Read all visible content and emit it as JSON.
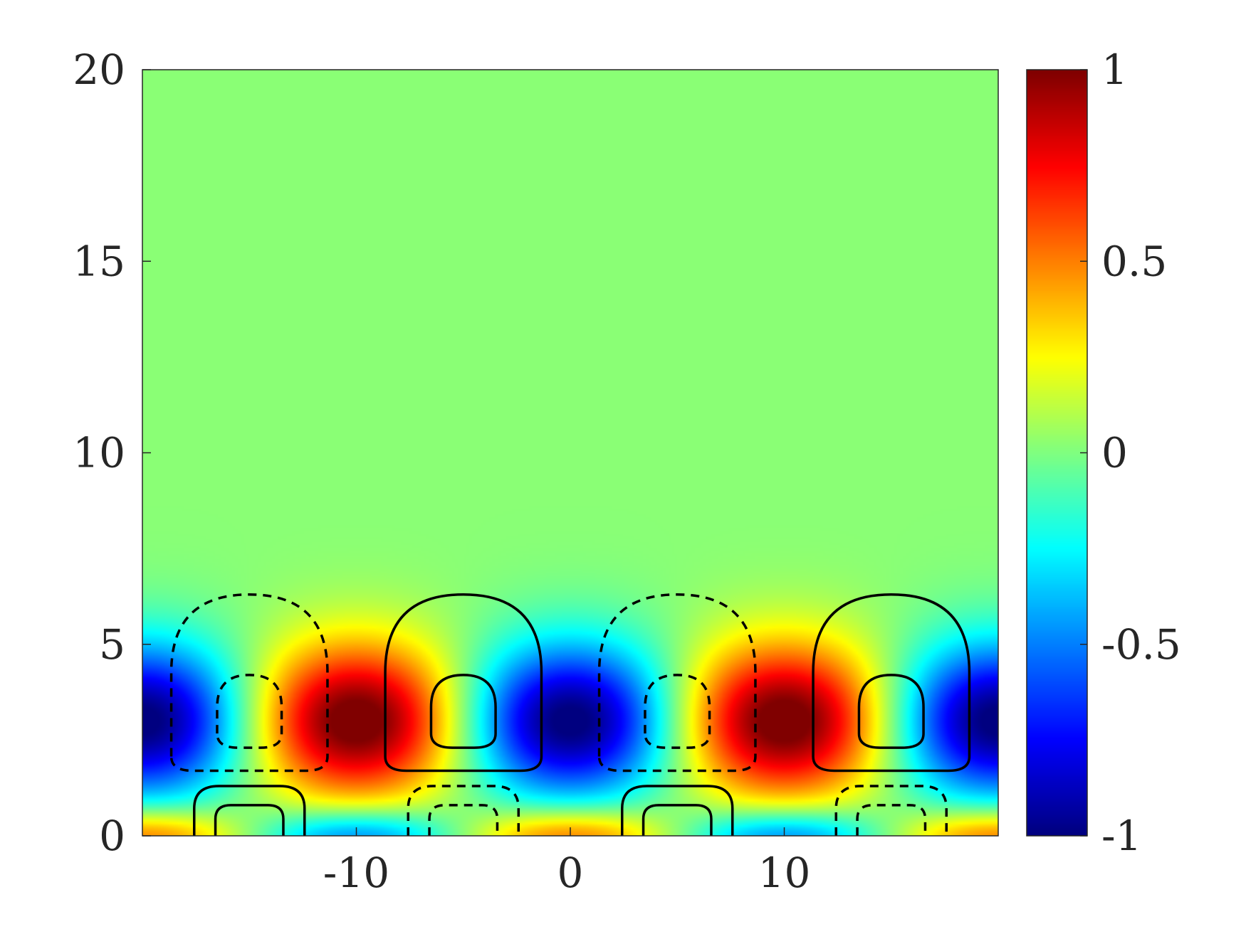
{
  "chart_data": {
    "type": "heatmap",
    "title": "",
    "xlabel": "",
    "ylabel": "",
    "xlim": [
      -20,
      20
    ],
    "ylim": [
      0,
      20
    ],
    "x_ticks": [
      "-10",
      "0",
      "10"
    ],
    "x_tick_values": [
      -10,
      0,
      10
    ],
    "y_ticks": [
      "0",
      "5",
      "10",
      "15",
      "20"
    ],
    "y_tick_values": [
      0,
      5,
      10,
      15,
      20
    ],
    "colormap": "jet",
    "color_range": [
      -1,
      1
    ],
    "colorbar": {
      "position": "right",
      "ticks": [
        "-1",
        "-0.5",
        "0",
        "0.5",
        "1"
      ],
      "tick_values": [
        -1,
        -0.5,
        0,
        0.5,
        1
      ]
    },
    "field": {
      "description_of_pattern": "periodic in x with period 20, amplitude concentrated below y≈8",
      "period_x": 20,
      "core_y": 3,
      "decay_top_y": 9
    },
    "contours": [
      {
        "name": "positive-outer-upper",
        "style": "solid",
        "center_x": -5,
        "y_bottom": 1.7,
        "y_top": 6.3
      },
      {
        "name": "positive-inner-upper",
        "style": "solid",
        "center_x": -5,
        "y_bottom": 2.3,
        "y_top": 4.2
      },
      {
        "name": "negative-outer-upper",
        "style": "dashed",
        "center_x": -15,
        "y_bottom": 1.7,
        "y_top": 6.3
      },
      {
        "name": "negative-inner-upper",
        "style": "dashed",
        "center_x": -15,
        "y_bottom": 2.3,
        "y_top": 4.2
      },
      {
        "name": "positive-outer-lower",
        "style": "solid",
        "center_x": -15,
        "y_bottom": 0,
        "y_top": 1.3
      },
      {
        "name": "positive-inner-lower",
        "style": "solid",
        "center_x": -15,
        "y_bottom": 0,
        "y_top": 0.8
      },
      {
        "name": "negative-outer-lower",
        "style": "dashed",
        "center_x": -5,
        "y_bottom": 0,
        "y_top": 1.3
      },
      {
        "name": "negative-inner-lower",
        "style": "dashed",
        "center_x": -5,
        "y_bottom": 0,
        "y_top": 0.8
      }
    ],
    "grid": false,
    "legend": "none"
  }
}
